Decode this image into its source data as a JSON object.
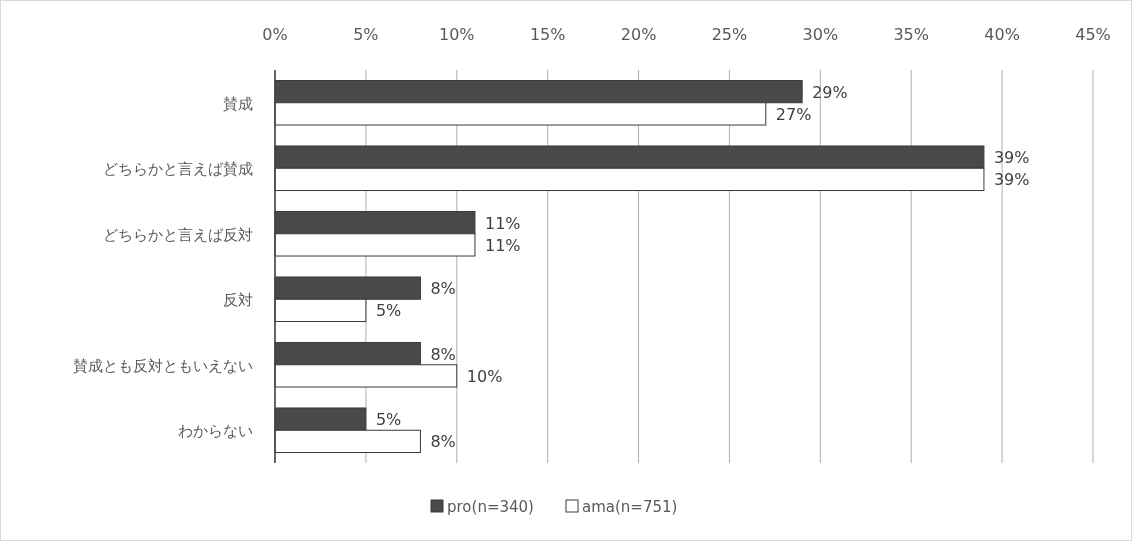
{
  "chart_data": {
    "type": "bar",
    "orientation": "horizontal",
    "categories": [
      "賛成",
      "どちらかと言えば賛成",
      "どちらかと言えば反対",
      "反対",
      "賛成とも反対ともいえない",
      "わからない"
    ],
    "series": [
      {
        "name": "pro(n=340)",
        "color": "#48494b",
        "values": [
          29,
          39,
          11,
          8,
          8,
          5
        ],
        "value_labels": [
          "29%",
          "39%",
          "11%",
          "8%",
          "8%",
          "5%"
        ]
      },
      {
        "name": "ama(n=751)",
        "color": "#ffffff",
        "values": [
          27,
          39,
          11,
          5,
          10,
          8
        ],
        "value_labels": [
          "27%",
          "39%",
          "11%",
          "5%",
          "10%",
          "8%"
        ]
      }
    ],
    "xlim": [
      0,
      45
    ],
    "xticks": [
      {
        "value": 0,
        "label": "0%"
      },
      {
        "value": 5,
        "label": "5%"
      },
      {
        "value": 10,
        "label": "10%"
      },
      {
        "value": 15,
        "label": "15%"
      },
      {
        "value": 20,
        "label": "20%"
      },
      {
        "value": 25,
        "label": "25%"
      },
      {
        "value": 30,
        "label": "30%"
      },
      {
        "value": 35,
        "label": "35%"
      },
      {
        "value": 40,
        "label": "40%"
      },
      {
        "value": 45,
        "label": "45%"
      }
    ],
    "grid": "x",
    "legend": "bottom"
  }
}
